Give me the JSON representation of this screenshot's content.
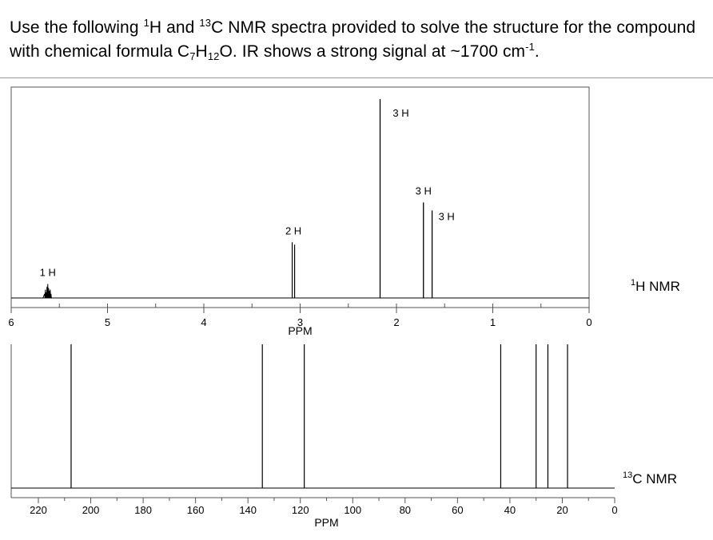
{
  "question": {
    "p1": "Use the following ",
    "sup1": "1",
    "p2": "H and ",
    "sup2": "13",
    "p3": "C NMR spectra provided to solve the structure for the compound with chemical formula C",
    "sub1": "7",
    "p4": "H",
    "sub2": "12",
    "p5": "O. IR shows a strong signal at ~1700 cm",
    "sup3": "-1",
    "p6": "."
  },
  "labels": {
    "h_nmr_sup": "1",
    "h_nmr_text": "H NMR",
    "c_nmr_sup": "13",
    "c_nmr_text": "C NMR"
  },
  "colors": {
    "line": "#000000",
    "axis": "#333333"
  },
  "chart_data": [
    {
      "type": "line",
      "subtype": "1H NMR spectrum",
      "xlabel": "PPM",
      "x_reversed": true,
      "xlim": [
        6,
        0
      ],
      "x_ticks": [
        6,
        5,
        4,
        3,
        2,
        1,
        0
      ],
      "peaks": [
        {
          "ppm": 5.62,
          "integration": "1 H",
          "relative_height": 0.07,
          "multiplet": true
        },
        {
          "ppm": 3.07,
          "integration": "2 H",
          "relative_height": 0.28,
          "multiplet": true
        },
        {
          "ppm": 2.17,
          "integration": "3 H",
          "relative_height": 1.0,
          "multiplet": false
        },
        {
          "ppm": 1.72,
          "integration": "3 H",
          "relative_height": 0.48,
          "multiplet": false
        },
        {
          "ppm": 1.63,
          "integration": "3 H",
          "relative_height": 0.44,
          "multiplet": false
        }
      ]
    },
    {
      "type": "line",
      "subtype": "13C NMR spectrum",
      "xlabel": "PPM",
      "x_reversed": true,
      "xlim": [
        220,
        0
      ],
      "x_ticks": [
        220,
        200,
        180,
        160,
        140,
        120,
        100,
        80,
        60,
        40,
        20,
        0
      ],
      "peaks": [
        {
          "ppm": 207.5
        },
        {
          "ppm": 134.5
        },
        {
          "ppm": 118.5
        },
        {
          "ppm": 43.5
        },
        {
          "ppm": 30.0
        },
        {
          "ppm": 25.5
        },
        {
          "ppm": 18.0
        }
      ]
    }
  ]
}
